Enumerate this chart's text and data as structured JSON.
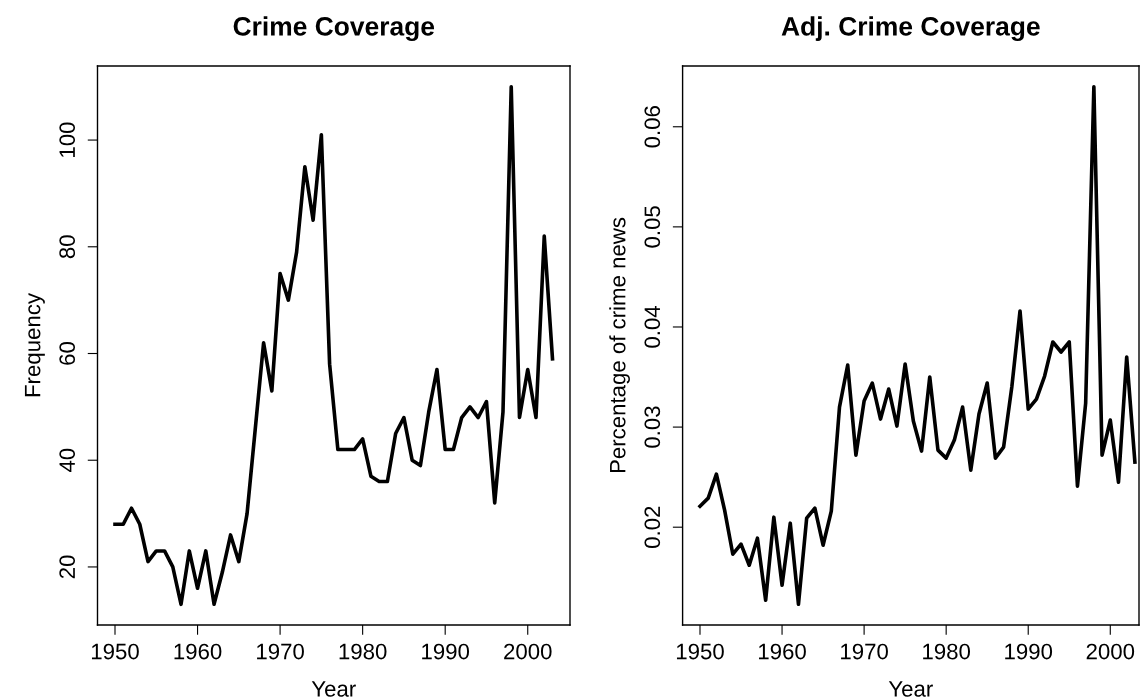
{
  "chart_data": [
    {
      "type": "line",
      "title": "Crime Coverage",
      "xlabel": "Year",
      "ylabel": "Frequency",
      "x": [
        1950,
        1951,
        1952,
        1953,
        1954,
        1955,
        1956,
        1957,
        1958,
        1959,
        1960,
        1961,
        1962,
        1963,
        1964,
        1965,
        1966,
        1967,
        1968,
        1969,
        1970,
        1971,
        1972,
        1973,
        1974,
        1975,
        1976,
        1977,
        1978,
        1979,
        1980,
        1981,
        1982,
        1983,
        1984,
        1985,
        1986,
        1987,
        1988,
        1989,
        1990,
        1991,
        1992,
        1993,
        1994,
        1995,
        1996,
        1997,
        1998,
        1999,
        2000,
        2001,
        2002,
        2003
      ],
      "series": [
        {
          "color": "#000000",
          "values": [
            28,
            28,
            31,
            28,
            21,
            23,
            23,
            20,
            13,
            23,
            16,
            23,
            13,
            19,
            26,
            21,
            30,
            46,
            62,
            53,
            75,
            70,
            79,
            95,
            85,
            101,
            58,
            42,
            42,
            42,
            44,
            37,
            36,
            36,
            45,
            48,
            40,
            39,
            49,
            57,
            42,
            42,
            48,
            50,
            48,
            51,
            32,
            49,
            110,
            48,
            57,
            48,
            82,
            59
          ]
        }
      ],
      "xlim": [
        1947.88,
        2005.12
      ],
      "ylim": [
        9.12,
        113.88
      ],
      "xticks": [
        1950,
        1960,
        1970,
        1980,
        1990,
        2000
      ],
      "yticks": [
        20,
        40,
        60,
        80,
        100
      ],
      "grid": false,
      "legend": false,
      "marker": "none",
      "line_style": "solid"
    },
    {
      "type": "line",
      "title": "Adj. Crime Coverage",
      "xlabel": "Year",
      "ylabel": "Percentage of crime news",
      "x": [
        1950,
        1951,
        1952,
        1953,
        1954,
        1955,
        1956,
        1957,
        1958,
        1959,
        1960,
        1961,
        1962,
        1963,
        1964,
        1965,
        1966,
        1967,
        1968,
        1969,
        1970,
        1971,
        1972,
        1973,
        1974,
        1975,
        1976,
        1977,
        1978,
        1979,
        1980,
        1981,
        1982,
        1983,
        1984,
        1985,
        1986,
        1987,
        1988,
        1989,
        1990,
        1991,
        1992,
        1993,
        1994,
        1995,
        1996,
        1997,
        1998,
        1999,
        2000,
        2001,
        2002,
        2003
      ],
      "series": [
        {
          "color": "#000000",
          "values": [
            0.0221,
            0.0229,
            0.0253,
            0.0217,
            0.0173,
            0.0183,
            0.0162,
            0.0189,
            0.0127,
            0.021,
            0.0142,
            0.0204,
            0.0123,
            0.0209,
            0.0219,
            0.0182,
            0.0216,
            0.032,
            0.0362,
            0.0272,
            0.0326,
            0.0344,
            0.0308,
            0.0338,
            0.0301,
            0.0363,
            0.0306,
            0.0276,
            0.035,
            0.0277,
            0.0269,
            0.0287,
            0.032,
            0.0257,
            0.0313,
            0.0344,
            0.0269,
            0.028,
            0.034,
            0.0416,
            0.0318,
            0.0328,
            0.0351,
            0.0385,
            0.0375,
            0.0385,
            0.0241,
            0.0324,
            0.064,
            0.0272,
            0.0307,
            0.0245,
            0.037,
            0.0265
          ]
        }
      ],
      "xlim": [
        1947.88,
        2003.5
      ],
      "ylim": [
        0.01023,
        0.06607
      ],
      "xticks": [
        1950,
        1960,
        1970,
        1980,
        1990,
        2000
      ],
      "yticks": [
        0.02,
        0.03,
        0.04,
        0.05,
        0.06
      ],
      "grid": false,
      "legend": false,
      "marker": "none",
      "line_style": "solid"
    }
  ]
}
